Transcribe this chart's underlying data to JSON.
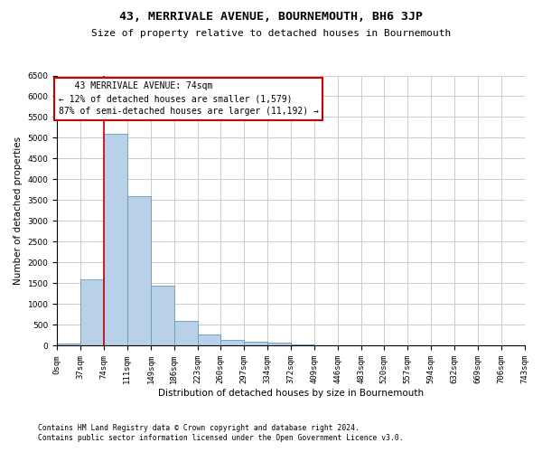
{
  "title": "43, MERRIVALE AVENUE, BOURNEMOUTH, BH6 3JP",
  "subtitle": "Size of property relative to detached houses in Bournemouth",
  "xlabel": "Distribution of detached houses by size in Bournemouth",
  "ylabel": "Number of detached properties",
  "footnote1": "Contains HM Land Registry data © Crown copyright and database right 2024.",
  "footnote2": "Contains public sector information licensed under the Open Government Licence v3.0.",
  "annotation_line1": "   43 MERRIVALE AVENUE: 74sqm",
  "annotation_line2": "← 12% of detached houses are smaller (1,579)",
  "annotation_line3": "87% of semi-detached houses are larger (11,192) →",
  "property_size": 74,
  "bar_edges": [
    0,
    37,
    74,
    111,
    149,
    186,
    223,
    260,
    297,
    334,
    372,
    409,
    446,
    483,
    520,
    557,
    594,
    632,
    669,
    706,
    743
  ],
  "bar_heights": [
    50,
    1600,
    5100,
    3600,
    1450,
    600,
    270,
    130,
    100,
    65,
    30,
    15,
    10,
    5,
    5,
    3,
    2,
    1,
    1,
    1
  ],
  "bar_color": "#b8d0e8",
  "bar_edge_color": "#6699bb",
  "vline_color": "#cc0000",
  "annotation_box_color": "#cc0000",
  "background_color": "#ffffff",
  "grid_color": "#cccccc",
  "ylim": [
    0,
    6500
  ],
  "yticks": [
    0,
    500,
    1000,
    1500,
    2000,
    2500,
    3000,
    3500,
    4000,
    4500,
    5000,
    5500,
    6000,
    6500
  ],
  "title_fontsize": 9.5,
  "subtitle_fontsize": 8,
  "axis_label_fontsize": 7.5,
  "tick_fontsize": 6.5,
  "annotation_fontsize": 7,
  "footnote_fontsize": 5.8
}
